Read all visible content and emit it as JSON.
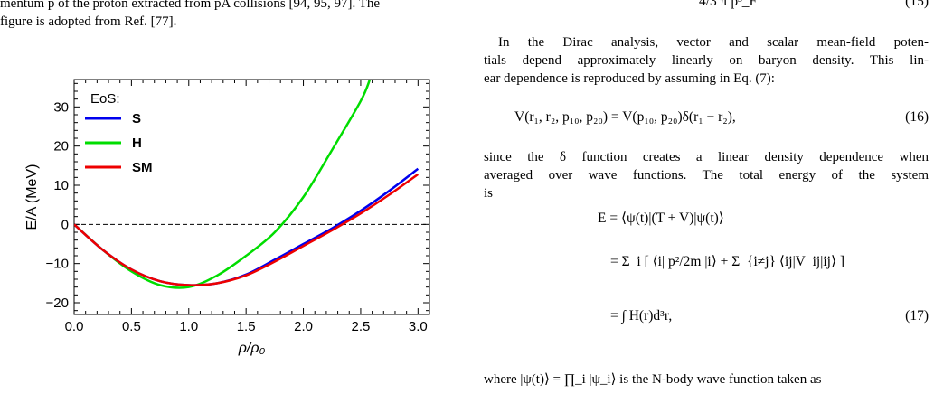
{
  "caption": {
    "line1": "mentum p of the proton extracted from pA collisions [94, 95, 97]. The",
    "line2": "figure is adopted from Ref. [77]."
  },
  "right": {
    "eq15_fragment": "4/3 π p³_F",
    "eq15_number": "(15)",
    "para1": [
      "In the Dirac analysis, vector and scalar mean-field poten-",
      "tials depend approximately linearly on baryon density. This lin-",
      "ear dependence is reproduced by assuming in Eq. (7):"
    ],
    "eq16": "V(r₁, r₂, p₁₀, p₂₀) = V(p₁₀, p₂₀)δ(r₁ − r₂),",
    "eq16_number": "(16)",
    "para2": [
      "since the δ function creates a linear density dependence when",
      "averaged over wave functions. The total energy of the system",
      "is"
    ],
    "eq17_line1": "E = ⟨ψ(t)|(T + V)|ψ(t)⟩",
    "eq17_line2": "= Σ_i [ ⟨i| p²/2m |i⟩ + Σ_{i≠j} ⟨ij|V_ij|ij⟩ ]",
    "eq17_line3": "= ∫ H(r)d³r,",
    "eq17_number": "(17)",
    "para3": "where |ψ(t)⟩ = ∏_i |ψ_i⟩ is the N-body wave function taken as"
  },
  "chart_data": {
    "type": "line",
    "title": "",
    "xlabel": "ρ/ρ₀",
    "ylabel": "E/A (MeV)",
    "xlim": [
      0.0,
      3.1
    ],
    "ylim": [
      -23,
      37
    ],
    "xticks": [
      "0.0",
      "0.5",
      "1.0",
      "1.5",
      "2.0",
      "2.5",
      "3.0"
    ],
    "yticks": [
      "−20",
      "−10",
      "0",
      "10",
      "20",
      "30"
    ],
    "grid": false,
    "legend_title": "EoS:",
    "legend_position": "top-left",
    "reference_line": {
      "y": 0,
      "style": "dashed"
    },
    "series": [
      {
        "name": "S",
        "color": "#0000ee",
        "x": [
          0.0,
          0.25,
          0.5,
          0.75,
          1.0,
          1.25,
          1.5,
          1.75,
          2.0,
          2.25,
          2.5,
          2.75,
          3.0
        ],
        "y": [
          0.0,
          -6.5,
          -11.5,
          -14.5,
          -15.5,
          -15.0,
          -12.8,
          -9.0,
          -5.0,
          -1.0,
          3.5,
          8.6,
          14.2
        ]
      },
      {
        "name": "H",
        "color": "#00dd00",
        "x": [
          0.0,
          0.25,
          0.5,
          0.75,
          1.0,
          1.25,
          1.5,
          1.75,
          2.0,
          2.25,
          2.5,
          2.58
        ],
        "y": [
          0.0,
          -6.5,
          -12.0,
          -15.5,
          -16.0,
          -13.0,
          -8.0,
          -2.0,
          7.0,
          19.0,
          31.5,
          37.0
        ]
      },
      {
        "name": "SM",
        "color": "#ee0000",
        "x": [
          0.0,
          0.25,
          0.5,
          0.75,
          1.0,
          1.25,
          1.5,
          1.75,
          2.0,
          2.25,
          2.5,
          2.75,
          3.0
        ],
        "y": [
          0.0,
          -6.5,
          -11.5,
          -14.5,
          -15.5,
          -15.0,
          -13.0,
          -9.5,
          -5.5,
          -1.5,
          2.8,
          7.6,
          12.8
        ]
      }
    ]
  }
}
